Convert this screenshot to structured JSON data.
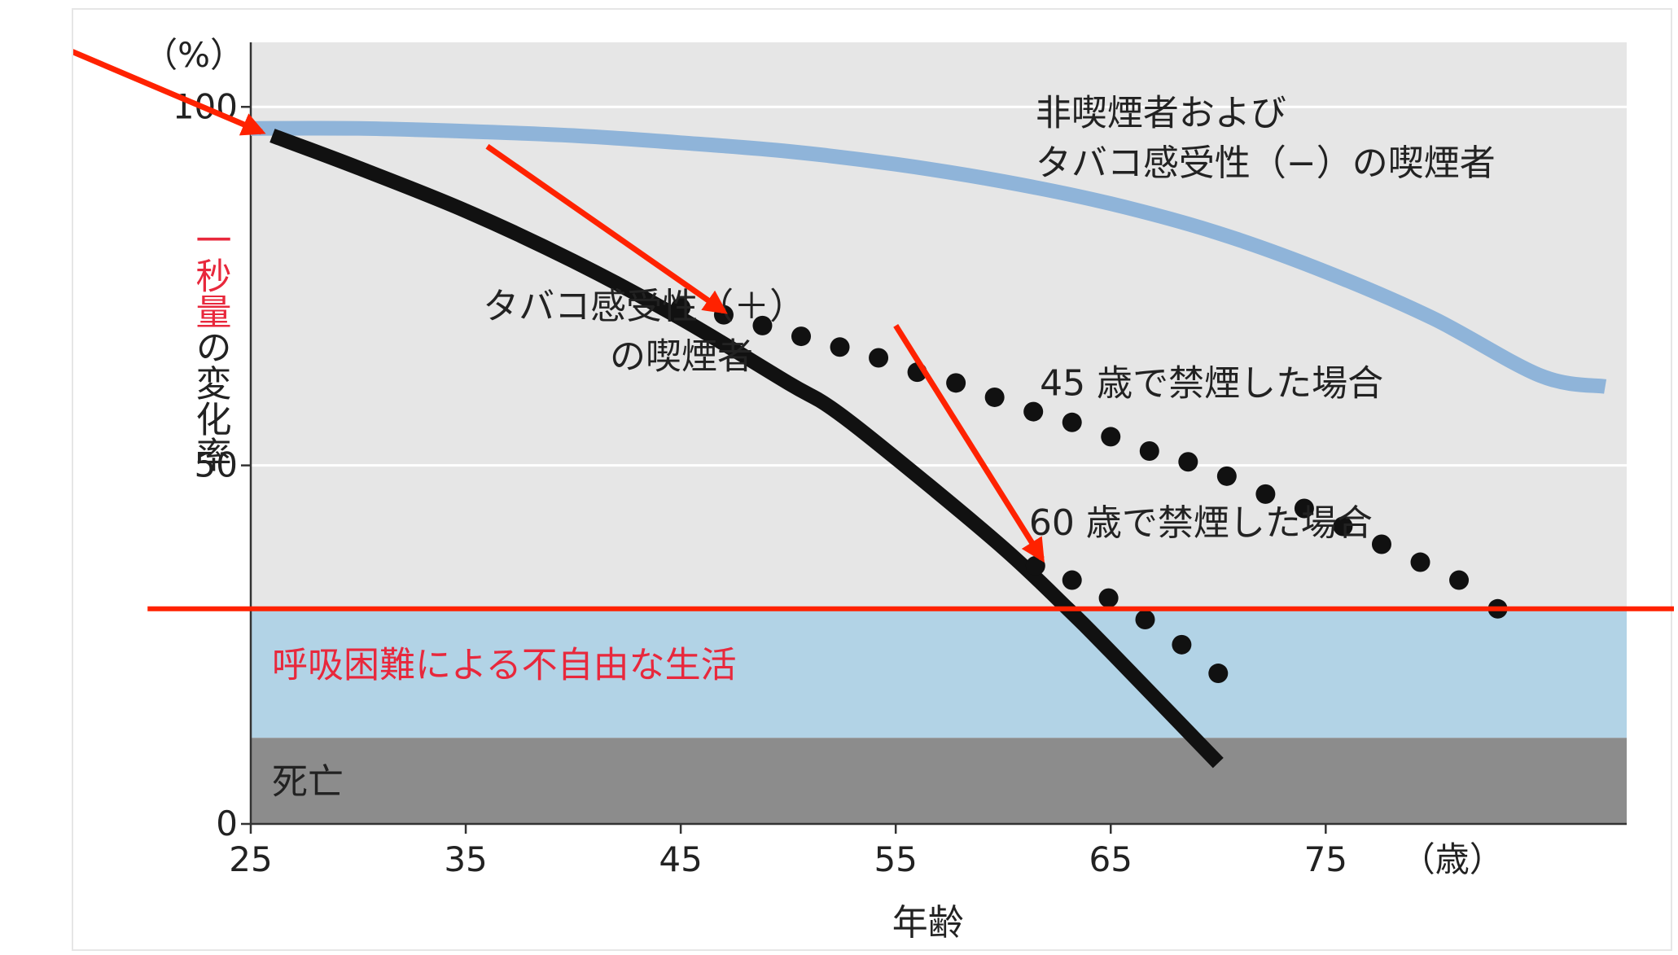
{
  "chart_data": {
    "type": "line",
    "xlabel": "年齢",
    "x_unit": "（歳）",
    "ylabel_red": "一秒量",
    "ylabel_rest": "の変化率",
    "y_unit": "（%）",
    "xlim": [
      25,
      89
    ],
    "ylim": [
      0,
      109
    ],
    "x_ticks": [
      "25",
      "35",
      "45",
      "55",
      "65",
      "75"
    ],
    "y_ticks": [
      "0",
      "50",
      "100"
    ],
    "grid": "horizontal at 50 and 100",
    "bands": [
      {
        "name": "呼吸困難による不自由な生活",
        "from": 12,
        "to": 30,
        "color": "#b2d3e6",
        "label_color": "#e8283c"
      },
      {
        "name": "死亡",
        "from": 0,
        "to": 12,
        "color": "#8c8c8c",
        "label_color": "#222222"
      }
    ],
    "series": [
      {
        "name": "非喫煙者および\nタバコ感受性（−）の喫煙者",
        "style": "solid",
        "color": "#8fb4d9",
        "x": [
          25,
          30,
          35,
          40,
          45,
          50,
          55,
          60,
          65,
          70,
          75,
          80,
          85,
          88
        ],
        "y": [
          97,
          97,
          96.6,
          96,
          95,
          93.8,
          92,
          89.6,
          86.5,
          82.4,
          77,
          70.5,
          62.5,
          61
        ]
      },
      {
        "name": "タバコ感受性（＋）\nの喫煙者",
        "style": "solid",
        "color": "#111111",
        "x": [
          26,
          30,
          35,
          40,
          45,
          50,
          52,
          55,
          60,
          63,
          65,
          70
        ],
        "y": [
          96,
          91.5,
          85.5,
          78.5,
          70.5,
          61.5,
          58,
          51,
          38.5,
          30,
          24,
          8.5
        ]
      },
      {
        "name": "45 歳で禁煙した場合",
        "style": "dotted",
        "color": "#111111",
        "x": [
          45,
          47,
          48.8,
          50.6,
          52.4,
          54.2,
          56,
          57.8,
          59.6,
          61.4,
          63.2,
          65,
          66.8,
          68.6,
          70.4,
          72.2,
          74,
          75.8,
          77.6,
          79.4,
          81.2,
          83
        ],
        "y": [
          72,
          71,
          69.5,
          68,
          66.5,
          65,
          63,
          61.5,
          59.5,
          57.5,
          56,
          54,
          52,
          50.5,
          48.5,
          46,
          44,
          41.5,
          39,
          36.5,
          34,
          30
        ]
      },
      {
        "name": "60 歳で禁煙した場合",
        "style": "dotted",
        "color": "#111111",
        "x": [
          61.5,
          63.2,
          64.9,
          66.6,
          68.3,
          70
        ],
        "y": [
          36,
          34,
          31.5,
          28.5,
          25,
          21
        ]
      }
    ],
    "annotations": [
      {
        "type": "horizontal-line",
        "y": 30,
        "color": "#ff2200"
      },
      {
        "type": "arrow",
        "color": "#ff2200",
        "from": [
          14.5,
          110.5
        ],
        "to": [
          25.5,
          96.5
        ]
      },
      {
        "type": "arrow",
        "color": "#ff2200",
        "from": [
          36,
          94.5
        ],
        "to": [
          47,
          71.5
        ]
      },
      {
        "type": "arrow",
        "color": "#ff2200",
        "from": [
          55,
          69.5
        ],
        "to": [
          61.8,
          37
        ]
      }
    ]
  }
}
